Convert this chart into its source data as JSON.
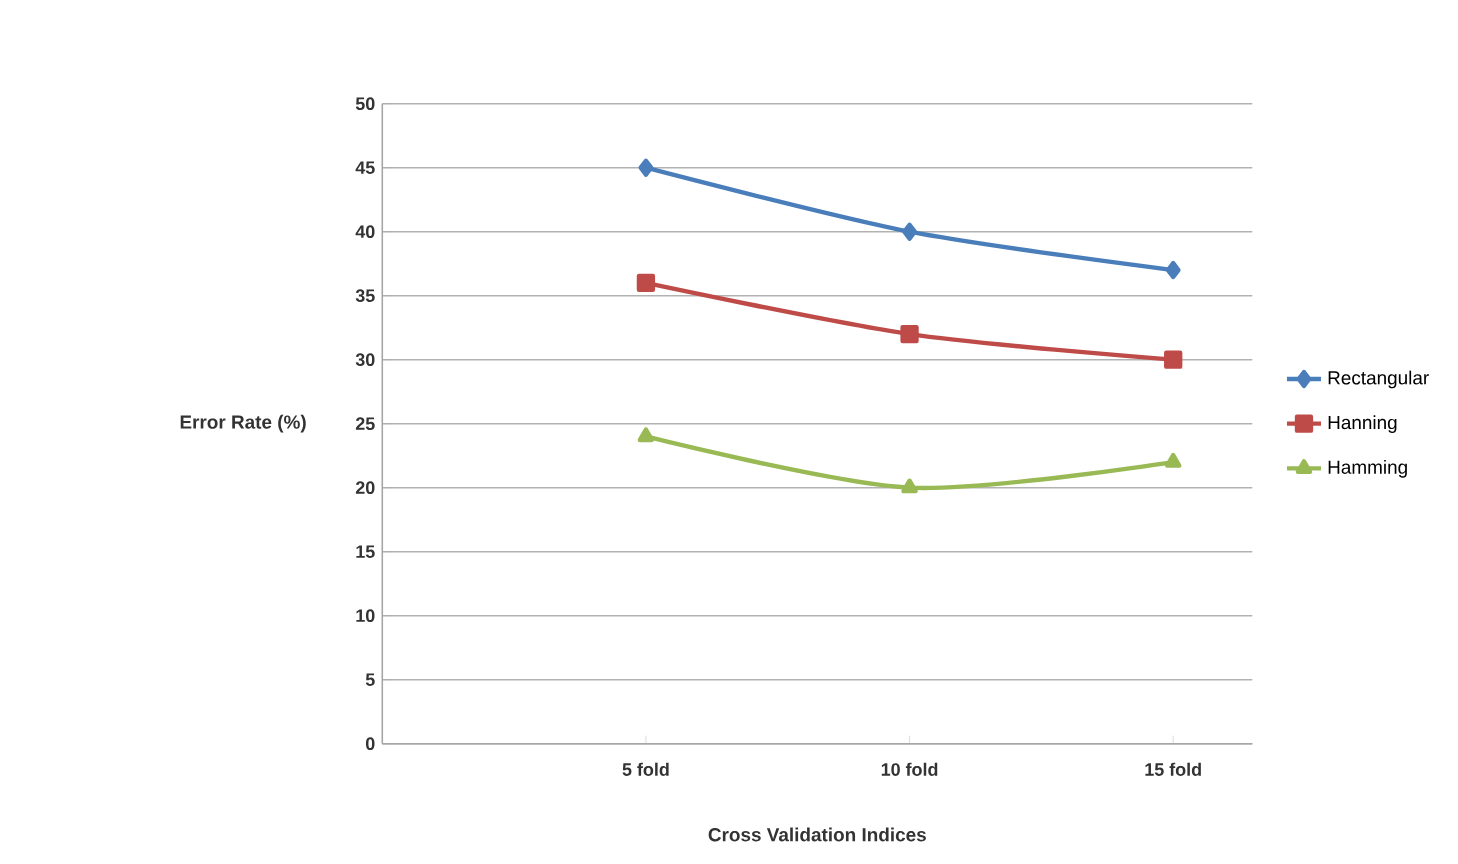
{
  "chart_data": {
    "type": "line",
    "xlabel": "Cross Validation  Indices",
    "ylabel": "Error Rate (%)",
    "categories": [
      "5 fold",
      "10 fold",
      "15 fold"
    ],
    "ylim": [
      0,
      50
    ],
    "yticks": [
      0,
      5,
      10,
      15,
      20,
      25,
      30,
      35,
      40,
      45,
      50
    ],
    "grid": "y",
    "legend": "right",
    "line_style": "solid",
    "series": [
      {
        "name": "Rectangular",
        "color": "#4a7ebb",
        "marker": "diamond",
        "values": [
          45,
          40,
          37
        ]
      },
      {
        "name": "Hanning",
        "color": "#be4b48",
        "marker": "square",
        "values": [
          36,
          32,
          30
        ]
      },
      {
        "name": "Hamming",
        "color": "#98b954",
        "marker": "triangle",
        "values": [
          24,
          20,
          22
        ]
      }
    ]
  }
}
